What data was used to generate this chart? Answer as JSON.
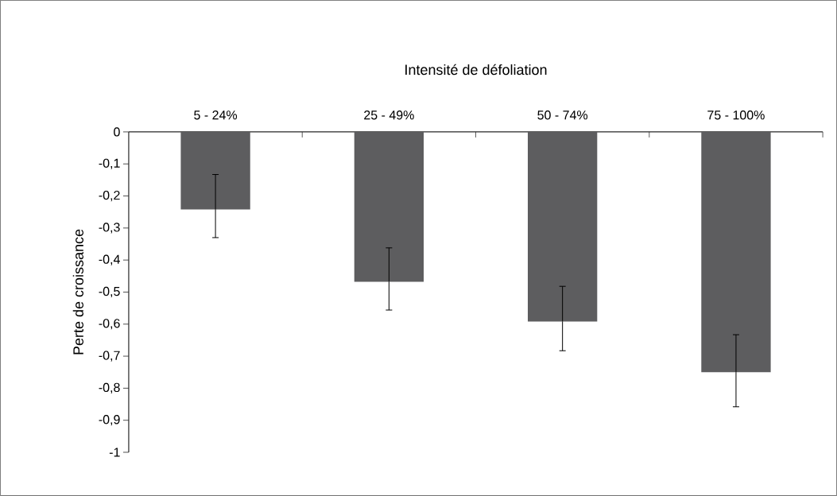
{
  "chart_data": {
    "type": "bar",
    "xlabel": "Intensité de défoliation",
    "ylabel": "Perte de croissance",
    "categories": [
      "5 - 24%",
      "25 - 49%",
      "50 - 74%",
      "75 - 100%"
    ],
    "values": [
      -0.242,
      -0.468,
      -0.592,
      -0.75
    ],
    "errors": [
      [
        -0.33,
        -0.133
      ],
      [
        -0.556,
        -0.362
      ],
      [
        -0.683,
        -0.482
      ],
      [
        -0.858,
        -0.633
      ]
    ],
    "color": "#5d5d5f",
    "ylim": [
      -1,
      0
    ],
    "yticks": [
      0,
      {
        "value": -0.1,
        "label": "-0,1"
      },
      {
        "value": -0.2,
        "label": "-0,2"
      },
      {
        "value": -0.3,
        "label": "-0,3"
      },
      {
        "value": -0.4,
        "label": "-0,4"
      },
      {
        "value": -0.5,
        "label": "-0,5"
      },
      {
        "value": -0.6,
        "label": "-0,6"
      },
      {
        "value": -0.7,
        "label": "-0,7"
      },
      {
        "value": -0.8,
        "label": "-0,8"
      },
      {
        "value": -0.9,
        "label": "-0,9"
      },
      -1
    ],
    "grid": false
  }
}
